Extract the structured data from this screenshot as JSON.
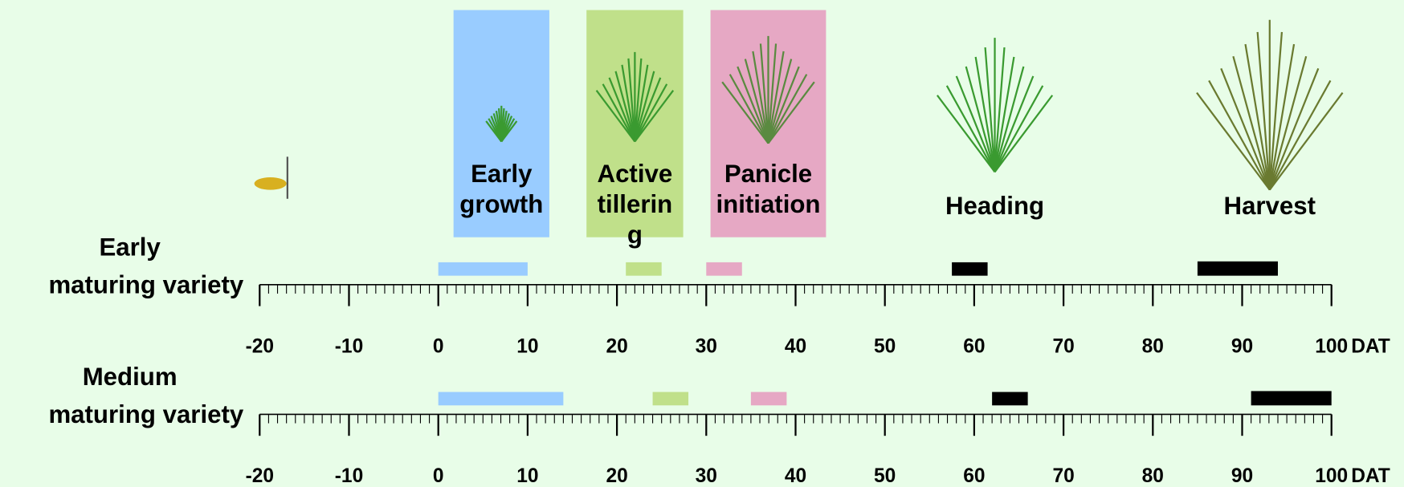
{
  "axis": {
    "unit": "DAT",
    "lim": [
      -20,
      100
    ],
    "ticks": [
      -20,
      -10,
      0,
      10,
      20,
      30,
      40,
      50,
      60,
      70,
      80,
      90,
      100
    ]
  },
  "stages": [
    {
      "label": [
        "Early",
        "growth"
      ],
      "color": "#99ccff",
      "boxed": true
    },
    {
      "label": [
        "Active",
        "tillerin",
        "g"
      ],
      "color": "#c0e08a",
      "boxed": true
    },
    {
      "label": [
        "Panicle",
        "initiation"
      ],
      "color": "#e6a8c4",
      "boxed": true
    },
    {
      "label": [
        "Heading"
      ],
      "color": "#000000",
      "boxed": false
    },
    {
      "label": [
        "Harvest"
      ],
      "color": "#000000",
      "boxed": false
    }
  ],
  "rows": [
    {
      "label": [
        "Early",
        "maturing variety"
      ],
      "bars": [
        {
          "start": 0,
          "end": 10
        },
        {
          "start": 21,
          "end": 25
        },
        {
          "start": 30,
          "end": 34
        },
        {
          "start": 57.5,
          "end": 61.5
        },
        {
          "start": 85,
          "end": 94
        }
      ]
    },
    {
      "label": [
        "Medium",
        "maturing variety"
      ],
      "bars": [
        {
          "start": 0,
          "end": 14
        },
        {
          "start": 24,
          "end": 28
        },
        {
          "start": 35,
          "end": 39
        },
        {
          "start": 62,
          "end": 66
        },
        {
          "start": 91,
          "end": 100
        }
      ]
    }
  ]
}
